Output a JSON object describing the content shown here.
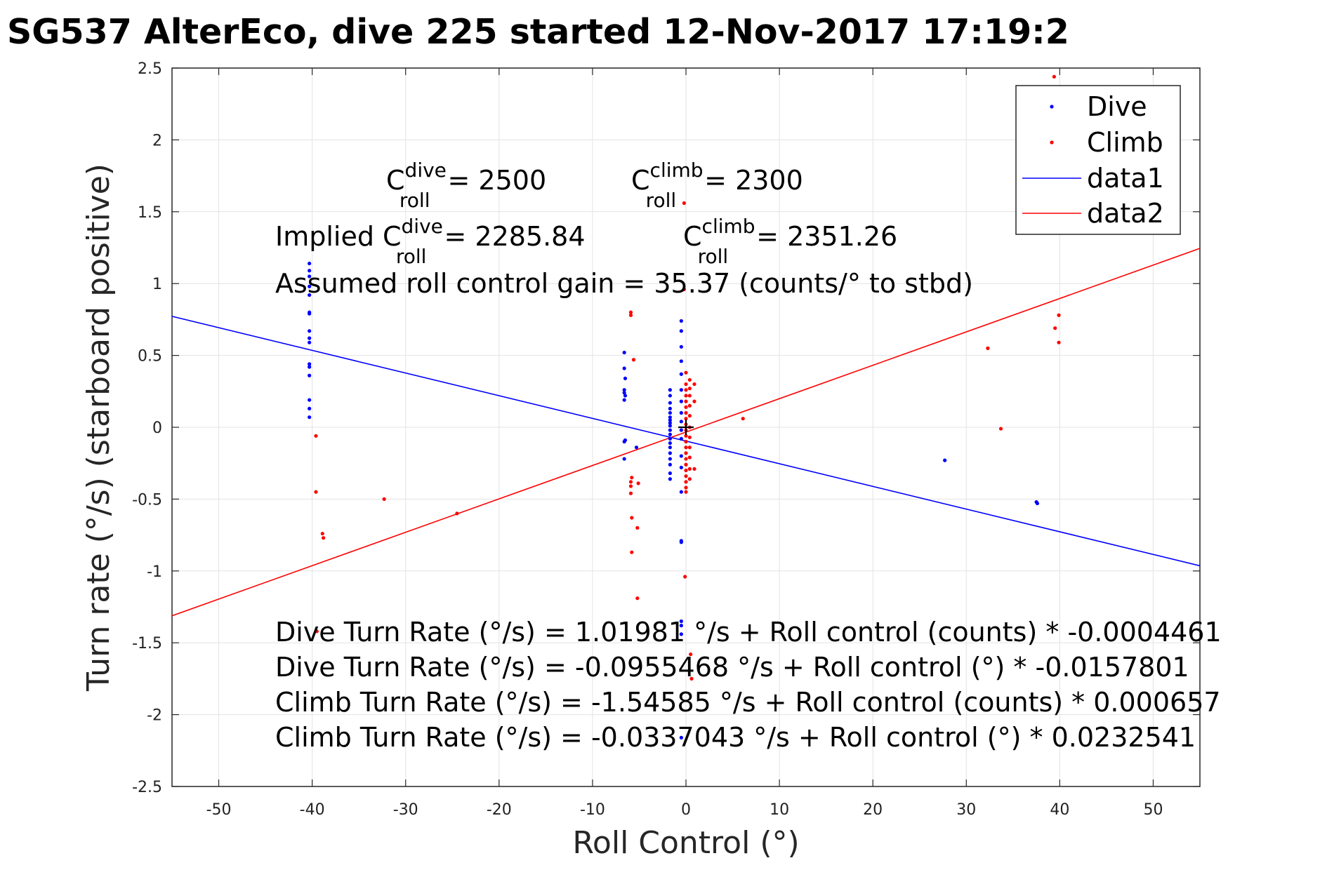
{
  "chart_data": {
    "type": "scatter",
    "title": "SG537 AlterEco, dive 225 started 12-Nov-2017 17:19:2",
    "xlabel": "Roll Control (°)",
    "ylabel": "Turn rate (°/s) (starboard positive)",
    "xlim": [
      -55,
      55
    ],
    "ylim": [
      -2.5,
      2.5
    ],
    "grid": true,
    "legend_position": "top-right",
    "x_ticks": [
      "-50",
      "-40",
      "-30",
      "-20",
      "-10",
      "0",
      "10",
      "20",
      "30",
      "40",
      "50"
    ],
    "y_ticks": [
      "2.5",
      "2",
      "1.5",
      "1",
      "0.5",
      "0",
      "-0.5",
      "-1",
      "-1.5",
      "-2",
      "-2.5"
    ],
    "colors": {
      "dive": "#0000ff",
      "climb": "#ff0000",
      "fit_dive": "#0000ff",
      "fit_climb": "#ff0000"
    },
    "series": [
      {
        "name": "Dive",
        "marker": "dot",
        "points": [
          [
            -40.3,
            1.14
          ],
          [
            -40.3,
            1.09
          ],
          [
            -40.3,
            1.05
          ],
          [
            -40.3,
            0.98
          ],
          [
            -40.3,
            0.92
          ],
          [
            -40.3,
            0.8
          ],
          [
            -40.3,
            0.79
          ],
          [
            -40.3,
            0.67
          ],
          [
            -40.3,
            0.62
          ],
          [
            -40.3,
            0.59
          ],
          [
            -40.3,
            0.44
          ],
          [
            -40.3,
            0.42
          ],
          [
            -40.3,
            0.36
          ],
          [
            -40.3,
            0.19
          ],
          [
            -40.3,
            0.13
          ],
          [
            -40.3,
            0.07
          ],
          [
            -6.6,
            0.52
          ],
          [
            -6.6,
            0.41
          ],
          [
            -6.5,
            0.34
          ],
          [
            -6.6,
            0.26
          ],
          [
            -6.6,
            0.24
          ],
          [
            -6.5,
            0.22
          ],
          [
            -6.6,
            0.19
          ],
          [
            -6.5,
            -0.09
          ],
          [
            -6.6,
            -0.1
          ],
          [
            -6.6,
            -0.22
          ],
          [
            -5.3,
            -0.14
          ],
          [
            -1.7,
            0.26
          ],
          [
            -1.7,
            0.22
          ],
          [
            -1.7,
            0.17
          ],
          [
            -1.7,
            0.13
          ],
          [
            -1.7,
            0.1
          ],
          [
            -1.7,
            0.07
          ],
          [
            -1.7,
            0.05
          ],
          [
            -1.7,
            0.03
          ],
          [
            -1.7,
            0.01
          ],
          [
            -1.7,
            -0.02
          ],
          [
            -1.7,
            -0.05
          ],
          [
            -1.7,
            -0.08
          ],
          [
            -1.7,
            -0.11
          ],
          [
            -1.7,
            -0.14
          ],
          [
            -1.7,
            -0.18
          ],
          [
            -1.7,
            -0.22
          ],
          [
            -1.7,
            -0.26
          ],
          [
            -1.7,
            -0.32
          ],
          [
            -1.7,
            -0.36
          ],
          [
            -0.5,
            0.74
          ],
          [
            -0.5,
            0.67
          ],
          [
            -0.5,
            0.56
          ],
          [
            -0.5,
            0.46
          ],
          [
            -0.5,
            0.37
          ],
          [
            -0.5,
            0.26
          ],
          [
            -0.5,
            0.18
          ],
          [
            -0.5,
            0.1
          ],
          [
            -0.5,
            0.04
          ],
          [
            -0.5,
            -0.02
          ],
          [
            -0.5,
            -0.08
          ],
          [
            -0.5,
            -0.2
          ],
          [
            -0.5,
            -0.28
          ],
          [
            -0.5,
            -0.45
          ],
          [
            -0.5,
            -0.79
          ],
          [
            -0.5,
            -0.8
          ],
          [
            -0.5,
            -1.35
          ],
          [
            -0.5,
            -1.38
          ],
          [
            -0.5,
            -1.44
          ],
          [
            -0.5,
            -2.16
          ],
          [
            27.7,
            -0.23
          ],
          [
            37.5,
            -0.52
          ],
          [
            37.6,
            -0.53
          ]
        ]
      },
      {
        "name": "Climb",
        "marker": "dot",
        "points": [
          [
            -39.6,
            -0.06
          ],
          [
            -39.6,
            -0.45
          ],
          [
            -38.9,
            -0.74
          ],
          [
            -38.8,
            -0.77
          ],
          [
            -39.5,
            -1.42
          ],
          [
            -32.3,
            -0.5
          ],
          [
            -24.5,
            -0.6
          ],
          [
            -5.9,
            0.8
          ],
          [
            -5.9,
            0.78
          ],
          [
            -5.6,
            0.47
          ],
          [
            -5.8,
            -0.35
          ],
          [
            -5.9,
            -0.38
          ],
          [
            -5.9,
            -0.41
          ],
          [
            -5.9,
            -0.46
          ],
          [
            -5.1,
            -0.39
          ],
          [
            -5.8,
            -0.63
          ],
          [
            -5.2,
            -0.7
          ],
          [
            -5.8,
            -0.87
          ],
          [
            -5.2,
            -1.19
          ],
          [
            -0.2,
            1.56
          ],
          [
            -0.2,
            0.96
          ],
          [
            0.0,
            0.38
          ],
          [
            0.0,
            0.3
          ],
          [
            0.0,
            0.26
          ],
          [
            0.0,
            0.22
          ],
          [
            0.0,
            0.18
          ],
          [
            0.0,
            0.14
          ],
          [
            0.0,
            0.1
          ],
          [
            0.0,
            0.06
          ],
          [
            0.0,
            0.02
          ],
          [
            0.0,
            -0.02
          ],
          [
            0.0,
            -0.06
          ],
          [
            0.0,
            -0.1
          ],
          [
            0.0,
            -0.14
          ],
          [
            0.0,
            -0.18
          ],
          [
            0.0,
            -0.22
          ],
          [
            0.0,
            -0.26
          ],
          [
            0.0,
            -0.3
          ],
          [
            0.0,
            -0.34
          ],
          [
            0.0,
            -0.38
          ],
          [
            0.0,
            -0.42
          ],
          [
            0.0,
            -0.45
          ],
          [
            0.4,
            0.33
          ],
          [
            0.4,
            0.27
          ],
          [
            0.4,
            0.22
          ],
          [
            0.4,
            0.15
          ],
          [
            0.4,
            0.08
          ],
          [
            0.4,
            0.0
          ],
          [
            0.4,
            -0.07
          ],
          [
            0.4,
            -0.14
          ],
          [
            0.4,
            -0.21
          ],
          [
            0.4,
            -0.29
          ],
          [
            0.4,
            -0.36
          ],
          [
            0.9,
            0.3
          ],
          [
            0.9,
            0.18
          ],
          [
            0.9,
            -0.29
          ],
          [
            -0.1,
            -1.04
          ],
          [
            0.5,
            -1.58
          ],
          [
            0.6,
            -1.75
          ],
          [
            6.1,
            0.06
          ],
          [
            32.3,
            0.55
          ],
          [
            33.7,
            -0.01
          ],
          [
            39.4,
            2.44
          ],
          [
            39.5,
            0.69
          ],
          [
            39.9,
            0.78
          ],
          [
            39.9,
            0.59
          ]
        ]
      },
      {
        "name": "data1",
        "type": "line",
        "x": [
          -55,
          55
        ],
        "y": [
          0.772,
          -0.964
        ]
      },
      {
        "name": "data2",
        "type": "line",
        "x": [
          -55,
          55
        ],
        "y": [
          -1.312,
          1.245
        ]
      }
    ],
    "markers": [
      {
        "type": "cross",
        "x": 0,
        "y": 0
      }
    ],
    "annotations": {
      "c_dive": {
        "main": "C",
        "sup": "dive",
        "sub": "roll",
        "value": "= 2500"
      },
      "c_climb": {
        "main": "C",
        "sup": "climb",
        "sub": "roll",
        "value": "= 2300"
      },
      "implied_prefix": "Implied",
      "implied_dive": {
        "main": "C",
        "sup": "dive",
        "sub": "roll",
        "value": "= 2285.84"
      },
      "implied_climb": {
        "main": "C",
        "sup": "climb",
        "sub": "roll",
        "value": "= 2351.26"
      },
      "gain": "Assumed roll control gain = 35.37 (counts/° to stbd)",
      "fits": [
        "Dive Turn Rate (°/s) = 1.01981 °/s + Roll control (counts) * -0.0004461",
        "Dive Turn Rate (°/s) = -0.0955468 °/s + Roll control (°) * -0.0157801",
        "Climb Turn Rate (°/s) = -1.54585 °/s + Roll control (counts) * 0.000657",
        "Climb Turn Rate (°/s) = -0.0337043 °/s + Roll control (°) * 0.0232541"
      ]
    }
  }
}
